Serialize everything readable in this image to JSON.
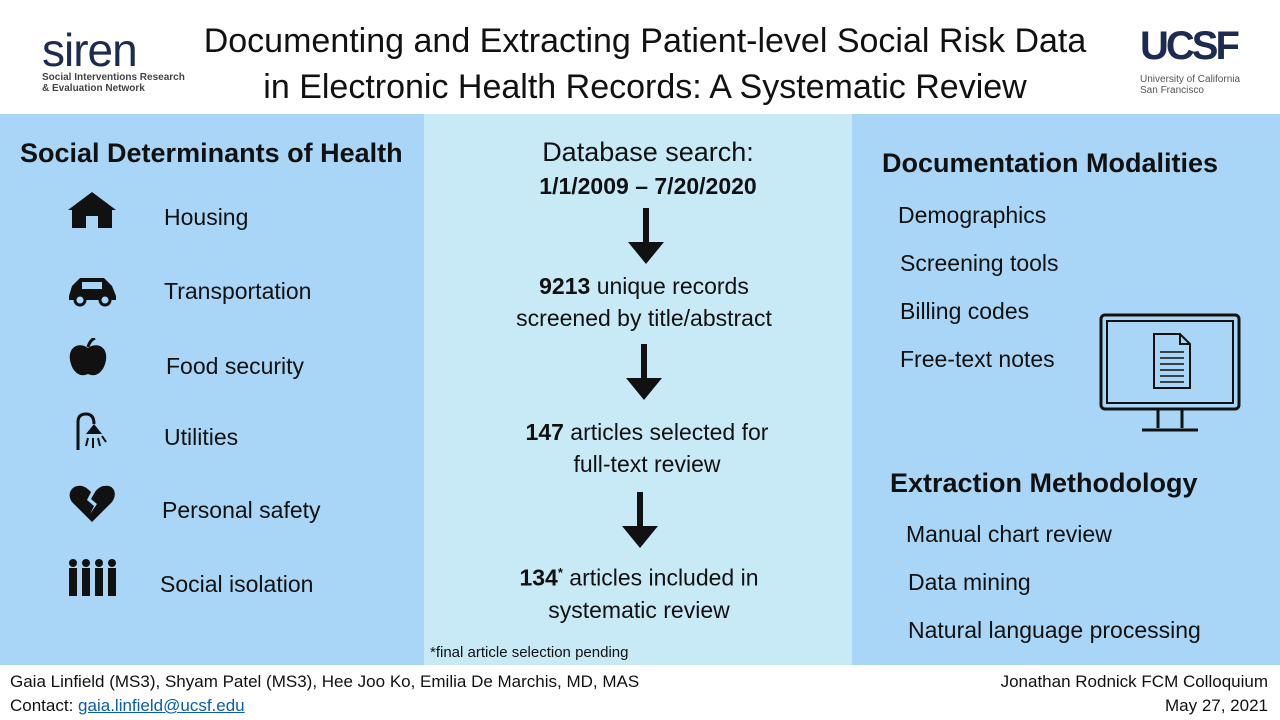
{
  "header": {
    "logo_text": "siren",
    "logo_subtitle_1": "Social Interventions Research",
    "logo_subtitle_2": "& Evaluation Network",
    "title_line1": "Documenting and Extracting Patient-level Social Risk Data",
    "title_line2": "in Electronic Health Records: A Systematic Review",
    "ucsf_logo": "UCSF",
    "ucsf_sub1": "University of California",
    "ucsf_sub2": "San Francisco"
  },
  "left": {
    "heading": "Social Determinants of Health",
    "items": [
      {
        "label": "Housing",
        "icon": "house-icon"
      },
      {
        "label": "Transportation",
        "icon": "car-icon"
      },
      {
        "label": "Food security",
        "icon": "apple-icon"
      },
      {
        "label": "Utilities",
        "icon": "shower-icon"
      },
      {
        "label": "Personal safety",
        "icon": "broken-heart-icon"
      },
      {
        "label": "Social isolation",
        "icon": "people-icon"
      }
    ]
  },
  "mid": {
    "search_label": "Database search:",
    "search_dates": "1/1/2009 – 7/20/2020",
    "step1_num": "9213",
    "step1_text": " unique records",
    "step1_text2": "screened by title/abstract",
    "step2_num": "147",
    "step2_text": " articles selected for",
    "step2_text2": "full-text review",
    "step3_num": "134",
    "step3_star": "*",
    "step3_text": " articles included in",
    "step3_text2": "systematic review",
    "footnote": "*final article selection pending"
  },
  "right": {
    "doc_heading": "Documentation Modalities",
    "doc_items": [
      "Demographics",
      "Screening tools",
      "Billing codes",
      "Free-text notes"
    ],
    "ext_heading": "Extraction Methodology",
    "ext_items": [
      "Manual chart review",
      "Data mining",
      "Natural language processing"
    ]
  },
  "footer": {
    "authors": "Gaia Linfield (MS3), Shyam Patel (MS3), Hee Joo Ko, Emilia De Marchis, MD, MAS",
    "contact_label": "Contact: ",
    "contact_email": "gaia.linfield@ucsf.edu",
    "event": "Jonathan Rodnick FCM Colloquium",
    "date": "May 27, 2021"
  }
}
